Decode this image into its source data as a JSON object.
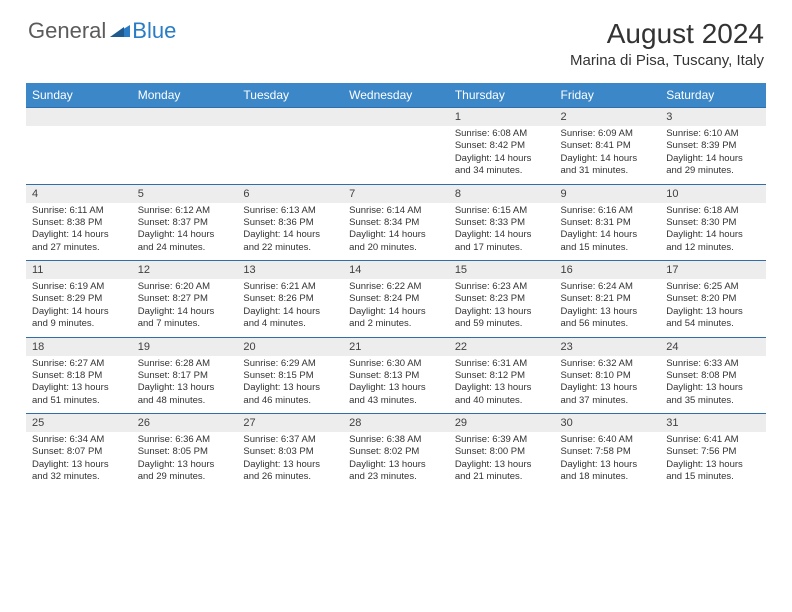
{
  "logo": {
    "general": "General",
    "blue": "Blue"
  },
  "title": "August 2024",
  "location": "Marina di Pisa, Tuscany, Italy",
  "colors": {
    "header_bg": "#3b87c8",
    "header_text": "#ffffff",
    "daynum_bg": "#ededed",
    "sep_line": "#2f6ea8",
    "logo_gray": "#5b5b5b",
    "logo_blue": "#2a7cc4"
  },
  "day_headers": [
    "Sunday",
    "Monday",
    "Tuesday",
    "Wednesday",
    "Thursday",
    "Friday",
    "Saturday"
  ],
  "weeks": [
    [
      {
        "num": "",
        "lines": []
      },
      {
        "num": "",
        "lines": []
      },
      {
        "num": "",
        "lines": []
      },
      {
        "num": "",
        "lines": []
      },
      {
        "num": "1",
        "lines": [
          "Sunrise: 6:08 AM",
          "Sunset: 8:42 PM",
          "Daylight: 14 hours",
          "and 34 minutes."
        ]
      },
      {
        "num": "2",
        "lines": [
          "Sunrise: 6:09 AM",
          "Sunset: 8:41 PM",
          "Daylight: 14 hours",
          "and 31 minutes."
        ]
      },
      {
        "num": "3",
        "lines": [
          "Sunrise: 6:10 AM",
          "Sunset: 8:39 PM",
          "Daylight: 14 hours",
          "and 29 minutes."
        ]
      }
    ],
    [
      {
        "num": "4",
        "lines": [
          "Sunrise: 6:11 AM",
          "Sunset: 8:38 PM",
          "Daylight: 14 hours",
          "and 27 minutes."
        ]
      },
      {
        "num": "5",
        "lines": [
          "Sunrise: 6:12 AM",
          "Sunset: 8:37 PM",
          "Daylight: 14 hours",
          "and 24 minutes."
        ]
      },
      {
        "num": "6",
        "lines": [
          "Sunrise: 6:13 AM",
          "Sunset: 8:36 PM",
          "Daylight: 14 hours",
          "and 22 minutes."
        ]
      },
      {
        "num": "7",
        "lines": [
          "Sunrise: 6:14 AM",
          "Sunset: 8:34 PM",
          "Daylight: 14 hours",
          "and 20 minutes."
        ]
      },
      {
        "num": "8",
        "lines": [
          "Sunrise: 6:15 AM",
          "Sunset: 8:33 PM",
          "Daylight: 14 hours",
          "and 17 minutes."
        ]
      },
      {
        "num": "9",
        "lines": [
          "Sunrise: 6:16 AM",
          "Sunset: 8:31 PM",
          "Daylight: 14 hours",
          "and 15 minutes."
        ]
      },
      {
        "num": "10",
        "lines": [
          "Sunrise: 6:18 AM",
          "Sunset: 8:30 PM",
          "Daylight: 14 hours",
          "and 12 minutes."
        ]
      }
    ],
    [
      {
        "num": "11",
        "lines": [
          "Sunrise: 6:19 AM",
          "Sunset: 8:29 PM",
          "Daylight: 14 hours",
          "and 9 minutes."
        ]
      },
      {
        "num": "12",
        "lines": [
          "Sunrise: 6:20 AM",
          "Sunset: 8:27 PM",
          "Daylight: 14 hours",
          "and 7 minutes."
        ]
      },
      {
        "num": "13",
        "lines": [
          "Sunrise: 6:21 AM",
          "Sunset: 8:26 PM",
          "Daylight: 14 hours",
          "and 4 minutes."
        ]
      },
      {
        "num": "14",
        "lines": [
          "Sunrise: 6:22 AM",
          "Sunset: 8:24 PM",
          "Daylight: 14 hours",
          "and 2 minutes."
        ]
      },
      {
        "num": "15",
        "lines": [
          "Sunrise: 6:23 AM",
          "Sunset: 8:23 PM",
          "Daylight: 13 hours",
          "and 59 minutes."
        ]
      },
      {
        "num": "16",
        "lines": [
          "Sunrise: 6:24 AM",
          "Sunset: 8:21 PM",
          "Daylight: 13 hours",
          "and 56 minutes."
        ]
      },
      {
        "num": "17",
        "lines": [
          "Sunrise: 6:25 AM",
          "Sunset: 8:20 PM",
          "Daylight: 13 hours",
          "and 54 minutes."
        ]
      }
    ],
    [
      {
        "num": "18",
        "lines": [
          "Sunrise: 6:27 AM",
          "Sunset: 8:18 PM",
          "Daylight: 13 hours",
          "and 51 minutes."
        ]
      },
      {
        "num": "19",
        "lines": [
          "Sunrise: 6:28 AM",
          "Sunset: 8:17 PM",
          "Daylight: 13 hours",
          "and 48 minutes."
        ]
      },
      {
        "num": "20",
        "lines": [
          "Sunrise: 6:29 AM",
          "Sunset: 8:15 PM",
          "Daylight: 13 hours",
          "and 46 minutes."
        ]
      },
      {
        "num": "21",
        "lines": [
          "Sunrise: 6:30 AM",
          "Sunset: 8:13 PM",
          "Daylight: 13 hours",
          "and 43 minutes."
        ]
      },
      {
        "num": "22",
        "lines": [
          "Sunrise: 6:31 AM",
          "Sunset: 8:12 PM",
          "Daylight: 13 hours",
          "and 40 minutes."
        ]
      },
      {
        "num": "23",
        "lines": [
          "Sunrise: 6:32 AM",
          "Sunset: 8:10 PM",
          "Daylight: 13 hours",
          "and 37 minutes."
        ]
      },
      {
        "num": "24",
        "lines": [
          "Sunrise: 6:33 AM",
          "Sunset: 8:08 PM",
          "Daylight: 13 hours",
          "and 35 minutes."
        ]
      }
    ],
    [
      {
        "num": "25",
        "lines": [
          "Sunrise: 6:34 AM",
          "Sunset: 8:07 PM",
          "Daylight: 13 hours",
          "and 32 minutes."
        ]
      },
      {
        "num": "26",
        "lines": [
          "Sunrise: 6:36 AM",
          "Sunset: 8:05 PM",
          "Daylight: 13 hours",
          "and 29 minutes."
        ]
      },
      {
        "num": "27",
        "lines": [
          "Sunrise: 6:37 AM",
          "Sunset: 8:03 PM",
          "Daylight: 13 hours",
          "and 26 minutes."
        ]
      },
      {
        "num": "28",
        "lines": [
          "Sunrise: 6:38 AM",
          "Sunset: 8:02 PM",
          "Daylight: 13 hours",
          "and 23 minutes."
        ]
      },
      {
        "num": "29",
        "lines": [
          "Sunrise: 6:39 AM",
          "Sunset: 8:00 PM",
          "Daylight: 13 hours",
          "and 21 minutes."
        ]
      },
      {
        "num": "30",
        "lines": [
          "Sunrise: 6:40 AM",
          "Sunset: 7:58 PM",
          "Daylight: 13 hours",
          "and 18 minutes."
        ]
      },
      {
        "num": "31",
        "lines": [
          "Sunrise: 6:41 AM",
          "Sunset: 7:56 PM",
          "Daylight: 13 hours",
          "and 15 minutes."
        ]
      }
    ]
  ]
}
